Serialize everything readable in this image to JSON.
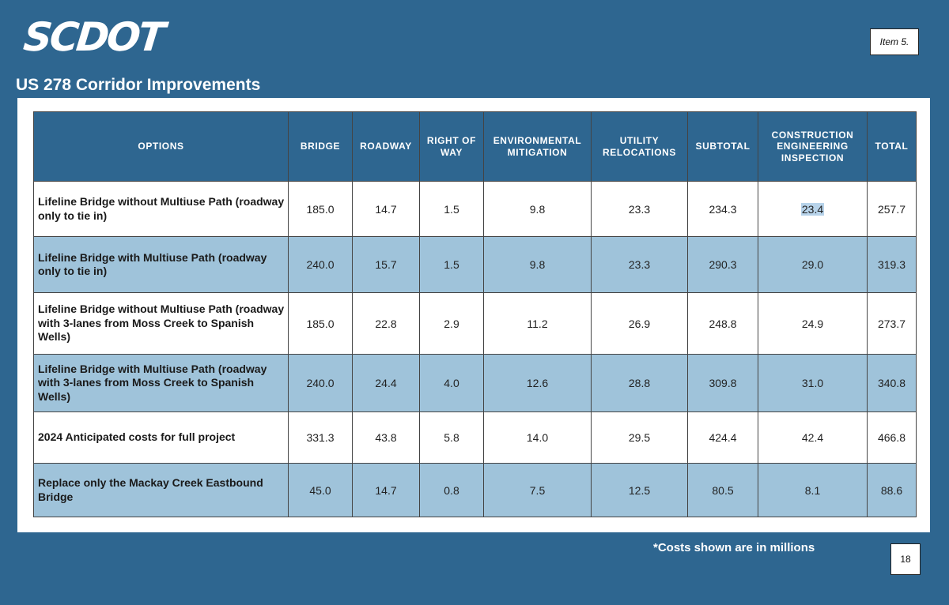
{
  "header": {
    "logo_text": "SCDOT",
    "item_label": "Item 5.",
    "title": "US 278 Corridor Improvements"
  },
  "table": {
    "columns": [
      "OPTIONS",
      "BRIDGE",
      "ROADWAY",
      "RIGHT OF WAY",
      "ENVIRONMENTAL MITIGATION",
      "UTILITY RELOCATIONS",
      "SUBTOTAL",
      "CONSTRUCTION ENGINEERING INSPECTION",
      "TOTAL"
    ],
    "rows": [
      {
        "option": "Lifeline Bridge without Multiuse Path (roadway only to tie in)",
        "values": [
          "185.0",
          "14.7",
          "1.5",
          "9.8",
          "23.3",
          "234.3",
          "23.4",
          "257.7"
        ]
      },
      {
        "option": "Lifeline Bridge with Multiuse Path (roadway only to tie in)",
        "values": [
          "240.0",
          "15.7",
          "1.5",
          "9.8",
          "23.3",
          "290.3",
          "29.0",
          "319.3"
        ]
      },
      {
        "option": "Lifeline Bridge without Multiuse Path (roadway with 3-lanes from Moss Creek to Spanish Wells)",
        "values": [
          "185.0",
          "22.8",
          "2.9",
          "11.2",
          "26.9",
          "248.8",
          "24.9",
          "273.7"
        ]
      },
      {
        "option": "Lifeline Bridge with Multiuse Path (roadway with 3-lanes from Moss Creek to Spanish Wells)",
        "values": [
          "240.0",
          "24.4",
          "4.0",
          "12.6",
          "28.8",
          "309.8",
          "31.0",
          "340.8"
        ]
      },
      {
        "option": "2024 Anticipated costs for full project",
        "values": [
          "331.3",
          "43.8",
          "5.8",
          "14.0",
          "29.5",
          "424.4",
          "42.4",
          "466.8"
        ]
      },
      {
        "option": "Replace only the Mackay Creek Eastbound Bridge",
        "values": [
          "45.0",
          "14.7",
          "0.8",
          "7.5",
          "12.5",
          "80.5",
          "8.1",
          "88.6"
        ]
      }
    ]
  },
  "footer": {
    "note": "*Costs shown are in millions",
    "page_number": "18"
  },
  "colors": {
    "background": "#2e6690",
    "header_fill": "#2e6690",
    "alt_row_fill": "#9fc3da",
    "highlight": "#b7d3ea"
  }
}
